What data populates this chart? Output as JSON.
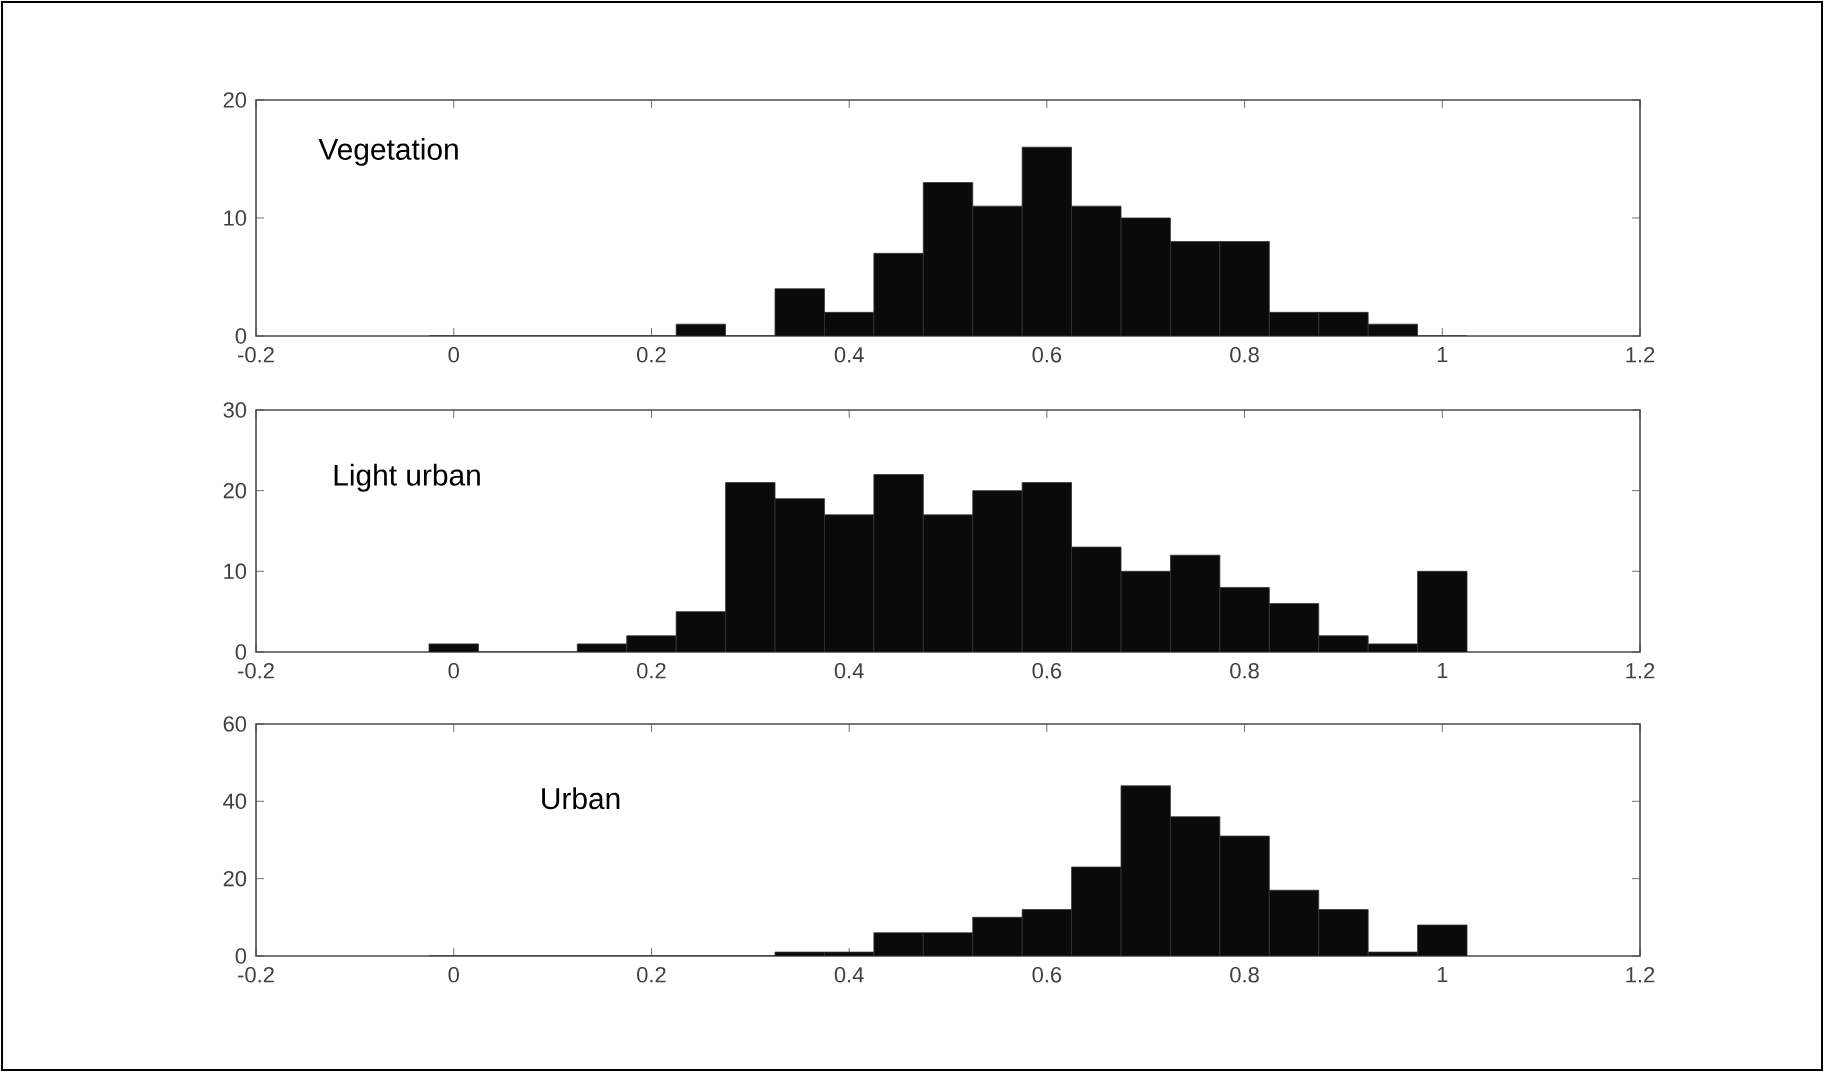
{
  "chart_data": [
    {
      "type": "histogram",
      "annotations": [
        "Vegetation"
      ],
      "color": "#0a0a0a",
      "bins": [
        -0.025,
        0.025,
        0.075,
        0.125,
        0.175,
        0.225,
        0.275,
        0.325,
        0.375,
        0.425,
        0.475,
        0.525,
        0.575,
        0.625,
        0.675,
        0.725,
        0.775,
        0.825,
        0.875,
        0.925,
        0.975,
        1.025
      ],
      "values": [
        0,
        0,
        0,
        0,
        0,
        1,
        0,
        4,
        2,
        7,
        13,
        11,
        16,
        11,
        10,
        8,
        8,
        2,
        2,
        1,
        0
      ],
      "xlim": [
        -0.2,
        1.2
      ],
      "xticks": [
        -0.2,
        0,
        0.2,
        0.4,
        0.6,
        0.8,
        1,
        1.2
      ],
      "ylim": [
        0,
        20
      ],
      "yticks": [
        0,
        10,
        20
      ]
    },
    {
      "type": "histogram",
      "annotations": [
        "Light urban"
      ],
      "color": "#0a0a0a",
      "bins": [
        -0.025,
        0.025,
        0.075,
        0.125,
        0.175,
        0.225,
        0.275,
        0.325,
        0.375,
        0.425,
        0.475,
        0.525,
        0.575,
        0.625,
        0.675,
        0.725,
        0.775,
        0.825,
        0.875,
        0.925,
        0.975,
        1.025
      ],
      "values": [
        1,
        0,
        0,
        1,
        2,
        5,
        21,
        19,
        17,
        22,
        17,
        20,
        21,
        13,
        10,
        12,
        8,
        6,
        2,
        1,
        10
      ],
      "xlim": [
        -0.2,
        1.2
      ],
      "xticks": [
        -0.2,
        0,
        0.2,
        0.4,
        0.6,
        0.8,
        1,
        1.2
      ],
      "ylim": [
        0,
        30
      ],
      "yticks": [
        0,
        10,
        20,
        30
      ]
    },
    {
      "type": "histogram",
      "annotations": [
        "Urban"
      ],
      "color": "#0a0a0a",
      "bins": [
        -0.025,
        0.025,
        0.075,
        0.125,
        0.175,
        0.225,
        0.275,
        0.325,
        0.375,
        0.425,
        0.475,
        0.525,
        0.575,
        0.625,
        0.675,
        0.725,
        0.775,
        0.825,
        0.875,
        0.925,
        0.975,
        1.025
      ],
      "values": [
        0,
        0,
        0,
        0,
        0,
        0,
        0,
        1,
        1,
        6,
        6,
        10,
        12,
        23,
        44,
        36,
        31,
        17,
        12,
        1,
        8
      ],
      "xlim": [
        -0.2,
        1.2
      ],
      "xticks": [
        -0.2,
        0,
        0.2,
        0.4,
        0.6,
        0.8,
        1,
        1.2
      ],
      "ylim": [
        0,
        60
      ],
      "yticks": [
        0,
        20,
        40,
        60
      ]
    }
  ]
}
